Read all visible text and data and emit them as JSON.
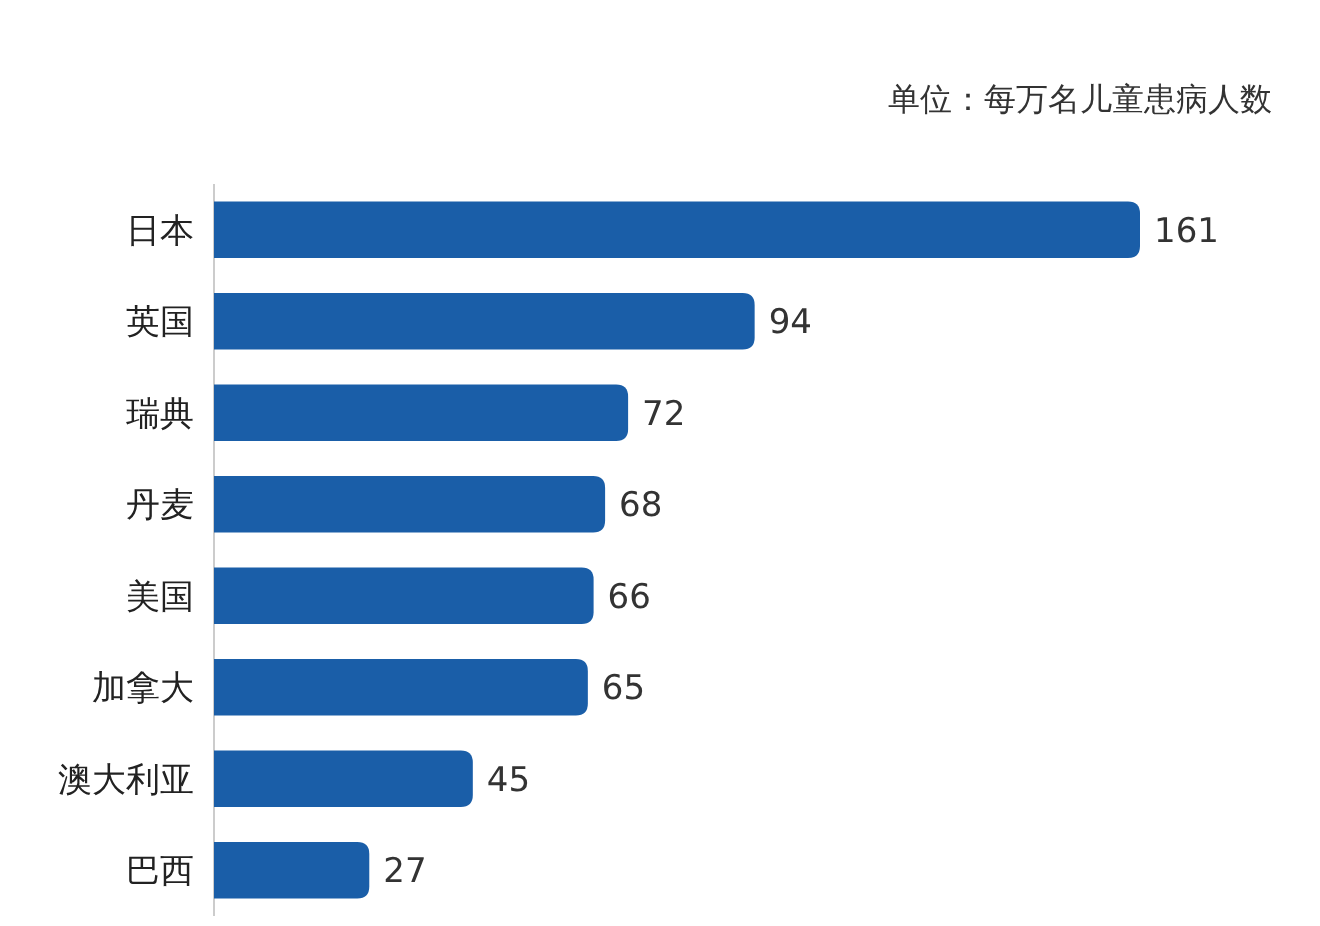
{
  "chart_data": {
    "type": "bar",
    "orientation": "horizontal",
    "subtitle": "单位：每万名儿童患病人数",
    "categories": [
      "日本",
      "英国",
      "瑞典",
      "丹麦",
      "美国",
      "加拿大",
      "澳大利亚",
      "巴西"
    ],
    "values": [
      161,
      94,
      72,
      68,
      66,
      65,
      45,
      27
    ],
    "color": "#1a5ea8",
    "data_labels": true
  }
}
